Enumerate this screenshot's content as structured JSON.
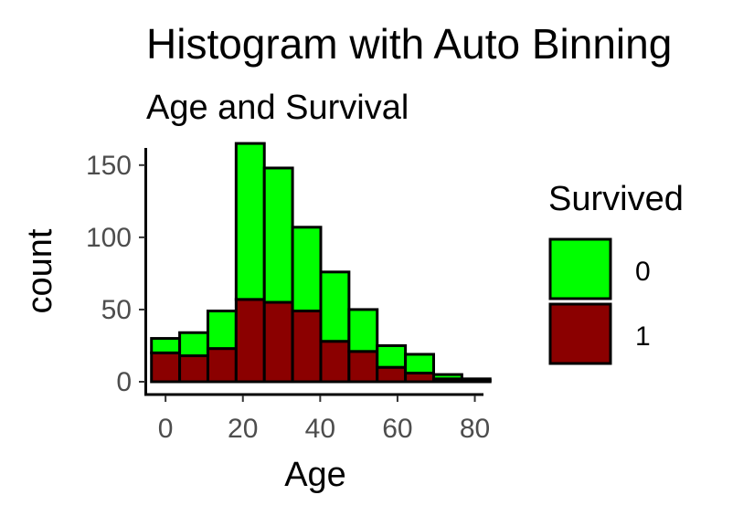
{
  "chart_data": {
    "type": "bar",
    "stacked": true,
    "title": "Histogram with Auto Binning",
    "subtitle": "Age and Survival",
    "xlabel": "Age",
    "ylabel": "count",
    "xlim": [
      -5,
      82
    ],
    "ylim": [
      0,
      172
    ],
    "x_ticks": [
      "0",
      "20",
      "40",
      "60",
      "80"
    ],
    "y_ticks": [
      "0",
      "50",
      "100",
      "150"
    ],
    "bin_width": 7.3,
    "bin_starts": [
      -3.65,
      3.65,
      10.95,
      18.25,
      25.55,
      32.85,
      40.15,
      47.45,
      54.75,
      62.05,
      69.35,
      76.65
    ],
    "series": [
      {
        "name": "1",
        "color": "#8b0000",
        "values": [
          20,
          18,
          23,
          57,
          55,
          49,
          28,
          21,
          10,
          6,
          2,
          1
        ]
      },
      {
        "name": "0",
        "color": "#00ff00",
        "values": [
          10,
          16,
          26,
          108,
          93,
          58,
          48,
          29,
          15,
          13,
          3,
          1
        ]
      }
    ],
    "legend": {
      "title": "Survived",
      "position": "right",
      "items": [
        {
          "label": "0",
          "color": "#00ff00"
        },
        {
          "label": "1",
          "color": "#8b0000"
        }
      ]
    },
    "grid": false
  }
}
